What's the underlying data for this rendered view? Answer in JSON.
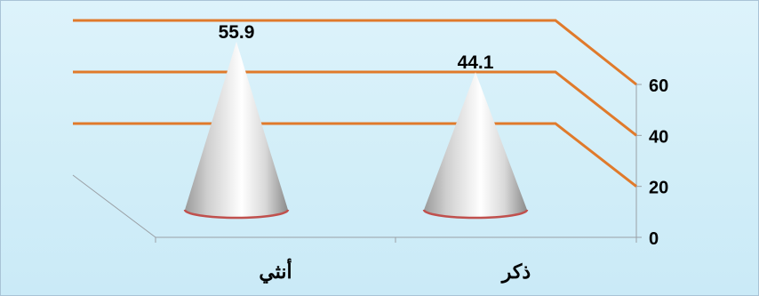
{
  "chart_data": {
    "type": "bar",
    "shape": "cone",
    "categories": [
      "ذكر",
      "أنثي"
    ],
    "values": [
      44.1,
      55.9
    ],
    "data_labels": [
      "44.1",
      "55.9"
    ],
    "ylim": [
      0,
      60
    ],
    "yticks": [
      {
        "value": 0,
        "label": "0"
      },
      {
        "value": 20,
        "label": "20"
      },
      {
        "value": 40,
        "label": "40"
      },
      {
        "value": 60,
        "label": "60"
      }
    ],
    "gridlines": true,
    "legend": "none",
    "colors": {
      "gridline": "#e07a2b",
      "cone_light": "#ffffff",
      "cone_dark": "#8e8e8e",
      "cone_base_edge": "#c0504d",
      "background": "#d6f0fa",
      "frame_border": "#a9c3d6"
    }
  }
}
